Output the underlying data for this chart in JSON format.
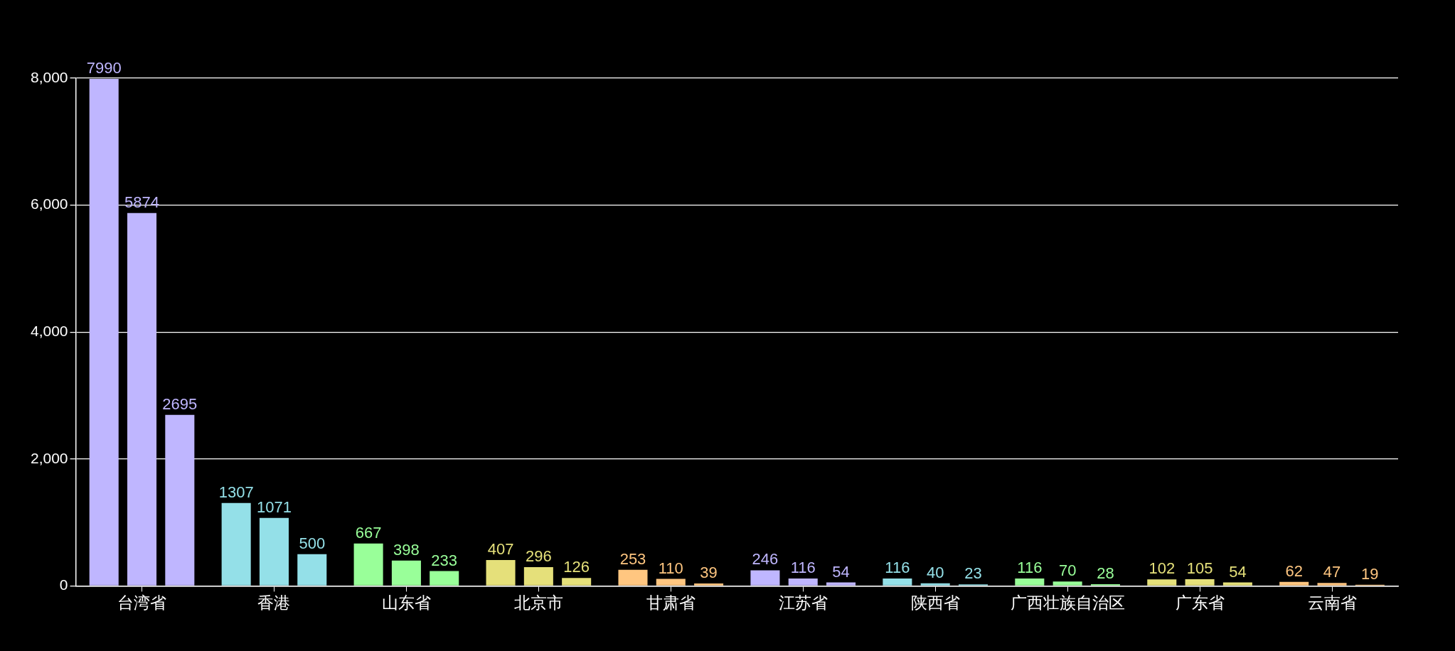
{
  "chart_data": {
    "type": "bar",
    "categories": [
      "台湾省",
      "香港",
      "山东省",
      "北京市",
      "甘肃省",
      "江苏省",
      "陕西省",
      "广西壮族自治区",
      "广东省",
      "云南省"
    ],
    "series": [
      {
        "colors": [
          "#bfb6ff",
          "#94e0e8",
          "#99ff99",
          "#e5e07a",
          "#ffc680",
          "#bfb6ff",
          "#94e0e8",
          "#99ff99",
          "#e5e07a",
          "#ffc680"
        ],
        "values": [
          7990,
          1307,
          667,
          407,
          253,
          246,
          116,
          116,
          102,
          62
        ]
      },
      {
        "colors": [
          "#bfb6ff",
          "#94e0e8",
          "#99ff99",
          "#e5e07a",
          "#ffc680",
          "#bfb6ff",
          "#94e0e8",
          "#99ff99",
          "#e5e07a",
          "#ffc680"
        ],
        "values": [
          5874,
          1071,
          398,
          296,
          110,
          116,
          40,
          70,
          105,
          47
        ]
      },
      {
        "colors": [
          "#bfb6ff",
          "#94e0e8",
          "#99ff99",
          "#e5e07a",
          "#ffc680",
          "#bfb6ff",
          "#94e0e8",
          "#99ff99",
          "#e5e07a",
          "#ffc680"
        ],
        "values": [
          2695,
          500,
          233,
          126,
          39,
          54,
          23,
          28,
          54,
          19
        ]
      }
    ],
    "ylim": [
      0,
      8000
    ],
    "yticks": [
      {
        "value": 0,
        "label": "0"
      },
      {
        "value": 2000,
        "label": "2,000"
      },
      {
        "value": 4000,
        "label": "4,000"
      },
      {
        "value": 6000,
        "label": "6,000"
      },
      {
        "value": 8000,
        "label": "8,000"
      }
    ],
    "grid": "y",
    "legend": false,
    "data_labels": true
  }
}
